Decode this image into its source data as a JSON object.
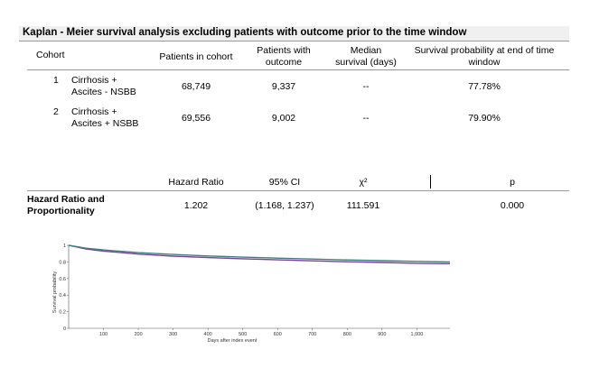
{
  "title": "Kaplan - Meier survival analysis excluding patients with outcome prior to the time window",
  "cohort_table": {
    "headers": {
      "cohort": "Cohort",
      "patients_in_cohort": "Patients in cohort",
      "patients_with_outcome_1": "Patients with",
      "patients_with_outcome_2": "outcome",
      "median_survival_1": "Median",
      "median_survival_2": "survival (days)",
      "survival_prob_1": "Survival probability at end of time",
      "survival_prob_2": "window"
    },
    "rows": [
      {
        "num": "1",
        "name_1": "Cirrhosis +",
        "name_2": "Ascites - NSBB",
        "patients": "68,749",
        "with_outcome": "9,337",
        "median": "--",
        "survival": "77.78%"
      },
      {
        "num": "2",
        "name_1": "Cirrhosis +",
        "name_2": "Ascites + NSBB",
        "patients": "69,556",
        "with_outcome": "9,002",
        "median": "--",
        "survival": "79.90%"
      }
    ]
  },
  "hazard_table": {
    "headers": {
      "hr": "Hazard Ratio",
      "ci": "95% CI",
      "chi": "χ²",
      "p": "p"
    },
    "row_label_1": "Hazard Ratio and",
    "row_label_2": "Proportionality",
    "hr": "1.202",
    "ci": "(1.168, 1.237)",
    "chi": "111.591",
    "p": "0.000"
  },
  "chart_data": {
    "type": "line",
    "xlabel": "Days after index event",
    "ylabel": "Survival probability",
    "xlim": [
      0,
      1095
    ],
    "ylim": [
      0,
      1
    ],
    "x_ticks": [
      100,
      200,
      300,
      400,
      500,
      600,
      700,
      800,
      900,
      1000
    ],
    "x_tick_labels": [
      "100",
      "200",
      "300",
      "400",
      "500",
      "600",
      "700",
      "800",
      "900",
      "1,000"
    ],
    "y_ticks": [
      0,
      0.2,
      0.4,
      0.6,
      0.8,
      1
    ],
    "y_tick_labels": [
      "0",
      "0.2",
      "0.4",
      "0.6",
      "0.8",
      "1"
    ],
    "grid": false,
    "series": [
      {
        "color": "#7b3f9e",
        "x": [
          0,
          50,
          100,
          200,
          300,
          400,
          500,
          600,
          700,
          800,
          900,
          1000,
          1095
        ],
        "y": [
          1.0,
          0.955,
          0.93,
          0.895,
          0.87,
          0.852,
          0.838,
          0.825,
          0.813,
          0.802,
          0.793,
          0.784,
          0.778
        ]
      },
      {
        "color": "#3f7f7f",
        "x": [
          0,
          50,
          100,
          200,
          300,
          400,
          500,
          600,
          700,
          800,
          900,
          1000,
          1095
        ],
        "y": [
          1.0,
          0.965,
          0.945,
          0.912,
          0.89,
          0.872,
          0.858,
          0.846,
          0.835,
          0.824,
          0.815,
          0.806,
          0.799
        ]
      }
    ]
  }
}
